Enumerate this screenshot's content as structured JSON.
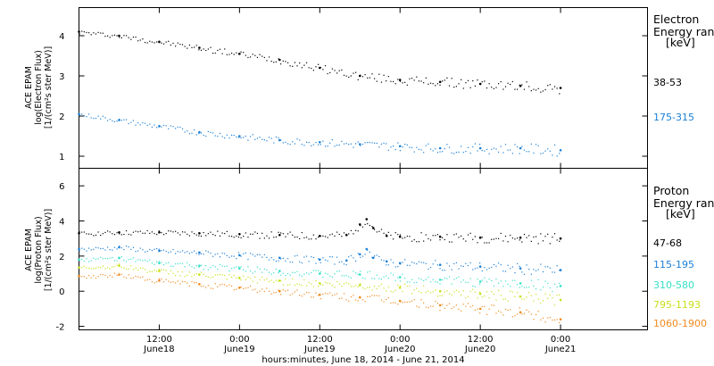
{
  "chart_data": [
    {
      "type": "scatter",
      "panel": "top",
      "ylabel_lines": [
        "ACE EPAM",
        "log(Electron Flux)",
        "[1/(cm²s ster MeV)]"
      ],
      "ylim": [
        0.7,
        4.7
      ],
      "y_ticks": [
        1,
        2,
        3,
        4
      ],
      "legend_title_lines": [
        "Electron",
        "Energy ran",
        "[keV]"
      ],
      "series": [
        {
          "name": "38-53",
          "color": "#000000",
          "x": [
            0,
            6,
            12,
            18,
            24,
            30,
            36,
            42,
            48,
            54,
            60,
            66,
            72
          ],
          "y": [
            4.1,
            4.0,
            3.85,
            3.7,
            3.55,
            3.4,
            3.2,
            3.0,
            2.9,
            2.85,
            2.8,
            2.75,
            2.7
          ]
        },
        {
          "name": "175-315",
          "color": "#1a7fd6",
          "x": [
            0,
            6,
            12,
            18,
            24,
            30,
            36,
            42,
            48,
            54,
            60,
            66,
            72
          ],
          "y": [
            2.05,
            1.9,
            1.75,
            1.6,
            1.5,
            1.4,
            1.35,
            1.3,
            1.25,
            1.2,
            1.2,
            1.2,
            1.15
          ]
        }
      ]
    },
    {
      "type": "scatter",
      "panel": "bottom",
      "ylabel_lines": [
        "ACE EPAM",
        "log(Proton Flux)",
        "[1/(cm²s ster MeV)]"
      ],
      "ylim": [
        -2.2,
        7.0
      ],
      "y_ticks": [
        -2,
        0,
        2,
        4,
        6
      ],
      "legend_title_lines": [
        "Proton",
        "Energy ran",
        "[keV]"
      ],
      "series": [
        {
          "name": "47-68",
          "color": "#000000",
          "x": [
            0,
            6,
            12,
            18,
            24,
            30,
            36,
            40,
            42,
            43,
            44,
            46,
            48,
            54,
            60,
            66,
            72
          ],
          "y": [
            3.3,
            3.35,
            3.35,
            3.3,
            3.25,
            3.2,
            3.15,
            3.2,
            3.8,
            4.1,
            3.6,
            3.15,
            3.1,
            3.1,
            3.05,
            3.05,
            3.0
          ]
        },
        {
          "name": "115-195",
          "color": "#1a7fd6",
          "x": [
            0,
            6,
            12,
            18,
            24,
            30,
            36,
            40,
            42,
            43,
            44,
            46,
            48,
            54,
            60,
            66,
            72
          ],
          "y": [
            2.4,
            2.5,
            2.3,
            2.2,
            2.05,
            1.9,
            1.8,
            1.75,
            2.1,
            2.4,
            1.9,
            1.7,
            1.6,
            1.5,
            1.4,
            1.3,
            1.2
          ]
        },
        {
          "name": "310-580",
          "color": "#33e0c8",
          "x": [
            0,
            6,
            12,
            18,
            24,
            30,
            36,
            42,
            48,
            54,
            60,
            66,
            72
          ],
          "y": [
            1.8,
            1.9,
            1.6,
            1.45,
            1.3,
            1.15,
            1.0,
            0.95,
            0.8,
            0.65,
            0.55,
            0.45,
            0.3
          ]
        },
        {
          "name": "795-1193",
          "color": "#c8e01a",
          "x": [
            0,
            6,
            12,
            18,
            24,
            30,
            36,
            42,
            48,
            54,
            60,
            66,
            72
          ],
          "y": [
            1.35,
            1.45,
            1.15,
            0.95,
            0.75,
            0.6,
            0.45,
            0.35,
            0.2,
            0.0,
            -0.15,
            -0.3,
            -0.5
          ]
        },
        {
          "name": "1060-1900",
          "color": "#f08a1e",
          "x": [
            0,
            6,
            12,
            18,
            24,
            30,
            36,
            42,
            48,
            54,
            60,
            66,
            72
          ],
          "y": [
            0.85,
            0.95,
            0.6,
            0.4,
            0.2,
            0.0,
            -0.2,
            -0.35,
            -0.55,
            -0.8,
            -1.0,
            -1.2,
            -1.6
          ]
        }
      ]
    }
  ],
  "x_axis": {
    "xlabel": "hours:minutes, June 18, 2014 - June 21, 2014",
    "range_hours": [
      0,
      85
    ],
    "ticks": [
      {
        "hours": 12,
        "time": "12:00",
        "date": "June18"
      },
      {
        "hours": 24,
        "time": "0:00",
        "date": "June19"
      },
      {
        "hours": 36,
        "time": "12:00",
        "date": "June19"
      },
      {
        "hours": 48,
        "time": "0:00",
        "date": "June20"
      },
      {
        "hours": 60,
        "time": "12:00",
        "date": "June20"
      },
      {
        "hours": 72,
        "time": "0:00",
        "date": "June21"
      }
    ]
  }
}
